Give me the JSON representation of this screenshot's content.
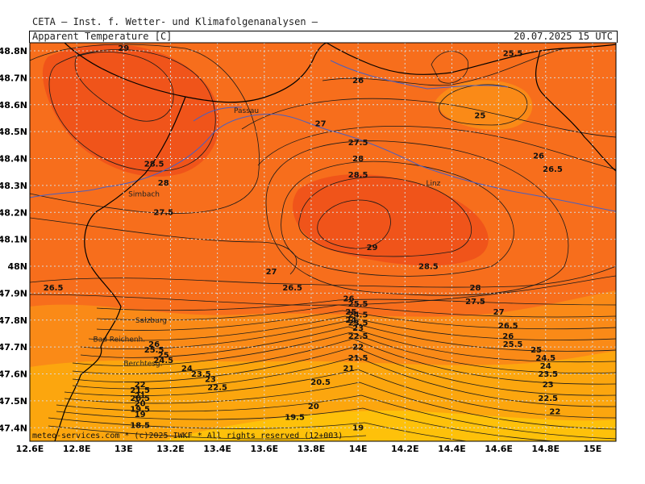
{
  "header": {
    "institution": "CETA — Inst. f. Wetter- und Klimafolgenanalysen —",
    "map_title": "Apparent Temperature [C]",
    "valid_time": "20.07.2025 15 UTC"
  },
  "footer": "meteo-services.com * (c)2025 IWKF * All rights reserved (12+003)",
  "axes": {
    "x_ticks": [
      "12.6E",
      "12.8E",
      "13E",
      "13.2E",
      "13.4E",
      "13.6E",
      "13.8E",
      "14E",
      "14.2E",
      "14.4E",
      "14.6E",
      "14.8E",
      "15E"
    ],
    "y_ticks": [
      "48.8N",
      "48.7N",
      "48.6N",
      "48.5N",
      "48.4N",
      "48.3N",
      "48.2N",
      "48.1N",
      "48N",
      "47.9N",
      "47.8N",
      "47.7N",
      "47.6N",
      "47.5N",
      "47.4N"
    ]
  },
  "cities": [
    {
      "name": "Passau",
      "lon": 13.47,
      "lat": 48.57
    },
    {
      "name": "Linz",
      "lon": 14.29,
      "lat": 48.3
    },
    {
      "name": "Simbach",
      "lon": 13.02,
      "lat": 48.26
    },
    {
      "name": "Salzburg",
      "lon": 13.05,
      "lat": 47.79
    },
    {
      "name": "Bad Reichenh.",
      "lon": 12.87,
      "lat": 47.72
    },
    {
      "name": "Berchtesg.",
      "lon": 13.0,
      "lat": 47.63
    }
  ],
  "contour_labels": [
    {
      "t": "29",
      "lon": 13.0,
      "lat": 48.8
    },
    {
      "t": "28.5",
      "lon": 13.13,
      "lat": 48.37
    },
    {
      "t": "28",
      "lon": 13.17,
      "lat": 48.3
    },
    {
      "t": "27.5",
      "lon": 13.17,
      "lat": 48.19
    },
    {
      "t": "26.5",
      "lon": 12.7,
      "lat": 47.91
    },
    {
      "t": "27",
      "lon": 13.63,
      "lat": 47.97
    },
    {
      "t": "26.5",
      "lon": 13.72,
      "lat": 47.91
    },
    {
      "t": "26",
      "lon": 14.0,
      "lat": 48.68
    },
    {
      "t": "27",
      "lon": 13.84,
      "lat": 48.52
    },
    {
      "t": "27.5",
      "lon": 14.0,
      "lat": 48.45
    },
    {
      "t": "28",
      "lon": 14.0,
      "lat": 48.39
    },
    {
      "t": "28.5",
      "lon": 14.0,
      "lat": 48.33
    },
    {
      "t": "29",
      "lon": 14.06,
      "lat": 48.06
    },
    {
      "t": "28.5",
      "lon": 14.3,
      "lat": 47.99
    },
    {
      "t": "25.5",
      "lon": 14.66,
      "lat": 48.78
    },
    {
      "t": "25",
      "lon": 14.52,
      "lat": 48.55
    },
    {
      "t": "26",
      "lon": 14.77,
      "lat": 48.4
    },
    {
      "t": "26.5",
      "lon": 14.83,
      "lat": 48.35
    },
    {
      "t": "28",
      "lon": 14.5,
      "lat": 47.91
    },
    {
      "t": "27.5",
      "lon": 14.5,
      "lat": 47.86
    },
    {
      "t": "27",
      "lon": 14.6,
      "lat": 47.82
    },
    {
      "t": "26.5",
      "lon": 14.64,
      "lat": 47.77
    },
    {
      "t": "26",
      "lon": 14.64,
      "lat": 47.73
    },
    {
      "t": "25.5",
      "lon": 14.66,
      "lat": 47.7
    },
    {
      "t": "25",
      "lon": 14.76,
      "lat": 47.68
    },
    {
      "t": "24.5",
      "lon": 14.8,
      "lat": 47.65
    },
    {
      "t": "24",
      "lon": 14.8,
      "lat": 47.62
    },
    {
      "t": "23.5",
      "lon": 14.81,
      "lat": 47.59
    },
    {
      "t": "23",
      "lon": 14.81,
      "lat": 47.55
    },
    {
      "t": "22.5",
      "lon": 14.81,
      "lat": 47.5
    },
    {
      "t": "22",
      "lon": 14.84,
      "lat": 47.45
    },
    {
      "t": "26",
      "lon": 13.96,
      "lat": 47.87
    },
    {
      "t": "25.5",
      "lon": 14.0,
      "lat": 47.85
    },
    {
      "t": "25",
      "lon": 13.97,
      "lat": 47.82
    },
    {
      "t": "24.5",
      "lon": 14.0,
      "lat": 47.81
    },
    {
      "t": "24",
      "lon": 13.97,
      "lat": 47.79
    },
    {
      "t": "23.5",
      "lon": 14.0,
      "lat": 47.78
    },
    {
      "t": "23",
      "lon": 14.0,
      "lat": 47.76
    },
    {
      "t": "22.5",
      "lon": 14.0,
      "lat": 47.73
    },
    {
      "t": "22",
      "lon": 14.0,
      "lat": 47.69
    },
    {
      "t": "21.5",
      "lon": 14.0,
      "lat": 47.65
    },
    {
      "t": "21",
      "lon": 13.96,
      "lat": 47.61
    },
    {
      "t": "20.5",
      "lon": 13.84,
      "lat": 47.56
    },
    {
      "t": "20",
      "lon": 13.81,
      "lat": 47.47
    },
    {
      "t": "19.5",
      "lon": 13.73,
      "lat": 47.43
    },
    {
      "t": "19",
      "lon": 14.0,
      "lat": 47.39
    },
    {
      "t": "26",
      "lon": 13.13,
      "lat": 47.7
    },
    {
      "t": "25.5",
      "lon": 13.13,
      "lat": 47.68
    },
    {
      "t": "25",
      "lon": 13.17,
      "lat": 47.66
    },
    {
      "t": "24.5",
      "lon": 13.17,
      "lat": 47.64
    },
    {
      "t": "24",
      "lon": 13.27,
      "lat": 47.61
    },
    {
      "t": "23.5",
      "lon": 13.33,
      "lat": 47.59
    },
    {
      "t": "23",
      "lon": 13.37,
      "lat": 47.57
    },
    {
      "t": "22.5",
      "lon": 13.4,
      "lat": 47.54
    },
    {
      "t": "22",
      "lon": 13.07,
      "lat": 47.55
    },
    {
      "t": "21.5",
      "lon": 13.07,
      "lat": 47.53
    },
    {
      "t": "21",
      "lon": 13.07,
      "lat": 47.51
    },
    {
      "t": "20.5",
      "lon": 13.07,
      "lat": 47.5
    },
    {
      "t": "20",
      "lon": 13.07,
      "lat": 47.48
    },
    {
      "t": "19.5",
      "lon": 13.07,
      "lat": 47.46
    },
    {
      "t": "19",
      "lon": 13.07,
      "lat": 47.44
    },
    {
      "t": "18.5",
      "lon": 13.07,
      "lat": 47.4
    }
  ],
  "colors": {
    "deep": "#f0541a",
    "base": "#f76e1c",
    "mid": "#fa8a17",
    "warm": "#fca60e",
    "cool": "#fec10a",
    "contour": "#1a1a1a",
    "river": "#4a5fc1",
    "border": "#000000"
  }
}
